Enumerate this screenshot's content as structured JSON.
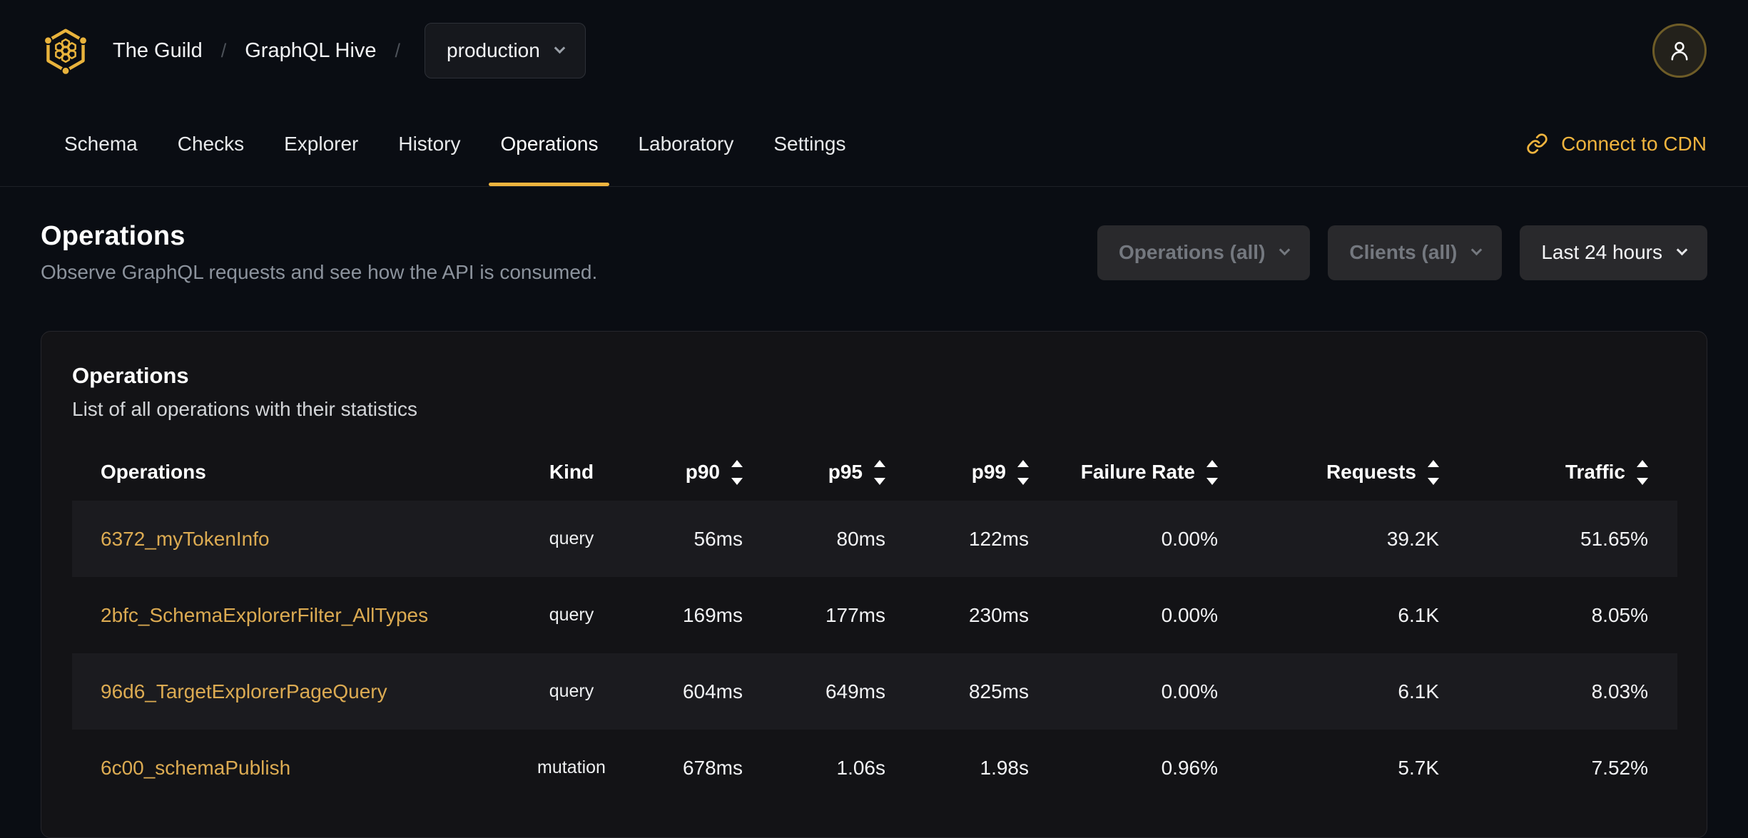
{
  "brand": {
    "org": "The Guild",
    "separator": "/",
    "project": "GraphQL Hive",
    "target_selector": {
      "value": "production"
    }
  },
  "nav": {
    "tabs": [
      {
        "label": "Schema",
        "active": false
      },
      {
        "label": "Checks",
        "active": false
      },
      {
        "label": "Explorer",
        "active": false
      },
      {
        "label": "History",
        "active": false
      },
      {
        "label": "Operations",
        "active": true
      },
      {
        "label": "Laboratory",
        "active": false
      },
      {
        "label": "Settings",
        "active": false
      }
    ],
    "cdn_link_label": "Connect to CDN"
  },
  "page_header": {
    "title": "Operations",
    "subtitle": "Observe GraphQL requests and see how the API is consumed.",
    "filters": [
      {
        "label": "Operations (all)",
        "enabled": false
      },
      {
        "label": "Clients (all)",
        "enabled": false
      },
      {
        "label": "Last 24 hours",
        "enabled": true
      }
    ]
  },
  "operations_card": {
    "title": "Operations",
    "subtitle": "List of all operations with their statistics",
    "table": {
      "columns": [
        {
          "label": "Operations",
          "align": "left",
          "sortable": false
        },
        {
          "label": "Kind",
          "align": "center",
          "sortable": false
        },
        {
          "label": "p90",
          "align": "right",
          "sortable": true
        },
        {
          "label": "p95",
          "align": "right",
          "sortable": true
        },
        {
          "label": "p99",
          "align": "right",
          "sortable": true
        },
        {
          "label": "Failure Rate",
          "align": "right",
          "sortable": true
        },
        {
          "label": "Requests",
          "align": "right",
          "sortable": true
        },
        {
          "label": "Traffic",
          "align": "right",
          "sortable": true
        }
      ],
      "rows": [
        {
          "operation": "6372_myTokenInfo",
          "kind": "query",
          "p90": "56ms",
          "p95": "80ms",
          "p99": "122ms",
          "failure_rate": "0.00%",
          "requests": "39.2K",
          "traffic": "51.65%"
        },
        {
          "operation": "2bfc_SchemaExplorerFilter_AllTypes",
          "kind": "query",
          "p90": "169ms",
          "p95": "177ms",
          "p99": "230ms",
          "failure_rate": "0.00%",
          "requests": "6.1K",
          "traffic": "8.05%"
        },
        {
          "operation": "96d6_TargetExplorerPageQuery",
          "kind": "query",
          "p90": "604ms",
          "p95": "649ms",
          "p99": "825ms",
          "failure_rate": "0.00%",
          "requests": "6.1K",
          "traffic": "8.03%"
        },
        {
          "operation": "6c00_schemaPublish",
          "kind": "mutation",
          "p90": "678ms",
          "p95": "1.06s",
          "p99": "1.98s",
          "failure_rate": "0.96%",
          "requests": "5.7K",
          "traffic": "7.52%"
        }
      ]
    }
  },
  "icons": {
    "hive-logo-icon": "gold hexagon with honeycomb",
    "user-icon": "person silhouette",
    "link-icon": "chain link",
    "chevron-down-icon": "v",
    "sort-arrows-icon": "up/down triangles"
  },
  "colors": {
    "page_bg": "#0a0d13",
    "card_bg": "#131316",
    "card_border": "#26262b",
    "row_stripe": "#1b1b1f",
    "accent_gold": "#f0b43e",
    "link_gold": "#dcab52",
    "muted_text": "#8c939d",
    "button_bg": "#29292c"
  }
}
